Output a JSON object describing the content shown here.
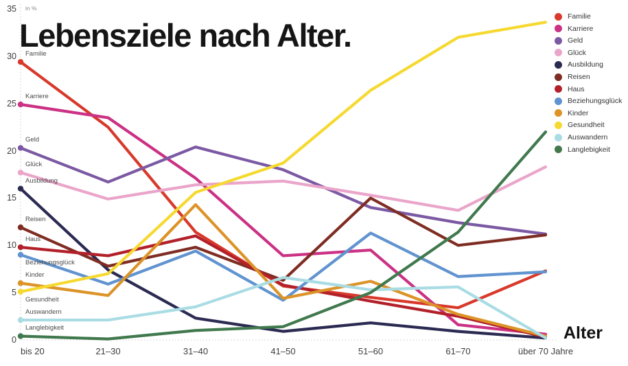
{
  "title": "Lebensziele nach Alter.",
  "y_axis": {
    "unit_label": "in %",
    "ticks": [
      "35",
      "30",
      "25",
      "20",
      "15",
      "10",
      "5",
      "0"
    ]
  },
  "x_axis": {
    "title": "Alter",
    "ticks": [
      "bis 20",
      "21–30",
      "31–40",
      "41–50",
      "51–60",
      "61–70",
      "über 70 Jahre"
    ]
  },
  "chart_data": {
    "type": "line",
    "title": "Lebensziele nach Alter.",
    "xlabel": "Alter",
    "ylabel": "in %",
    "ylim": [
      0,
      35
    ],
    "grid": false,
    "legend_position": "top-right",
    "categories": [
      "bis 20",
      "21–30",
      "31–40",
      "41–50",
      "51–60",
      "61–70",
      "über 70 Jahre"
    ],
    "series": [
      {
        "name": "Familie",
        "color": "#D8392B",
        "label_side": "above",
        "values": [
          29.4,
          22.5,
          11.4,
          5.7,
          4.5,
          3.4,
          7.3
        ]
      },
      {
        "name": "Karriere",
        "color": "#CB3184",
        "label_side": "above",
        "values": [
          24.9,
          23.5,
          17.1,
          8.9,
          9.5,
          1.6,
          0.6
        ]
      },
      {
        "name": "Geld",
        "color": "#7B59A3",
        "label_side": "above",
        "values": [
          20.3,
          16.7,
          20.4,
          18.0,
          14.0,
          12.4,
          11.2
        ]
      },
      {
        "name": "Glück",
        "color": "#EAA5CA",
        "label_side": "above",
        "values": [
          17.7,
          14.9,
          16.4,
          16.8,
          15.3,
          13.7,
          18.3
        ]
      },
      {
        "name": "Ausbildung",
        "color": "#2B2A52",
        "label_side": "above",
        "values": [
          16.0,
          7.4,
          2.3,
          0.9,
          1.8,
          0.9,
          0.2
        ]
      },
      {
        "name": "Reisen",
        "color": "#7F2D23",
        "label_side": "above",
        "values": [
          11.9,
          7.8,
          9.8,
          6.3,
          15.0,
          10.0,
          11.1
        ]
      },
      {
        "name": "Haus",
        "color": "#B22029",
        "label_side": "above",
        "values": [
          9.8,
          8.9,
          11.0,
          5.8,
          4.1,
          2.5,
          0.3
        ]
      },
      {
        "name": "Beziehungsglück",
        "color": "#6093CF",
        "label_side": "below",
        "values": [
          9.0,
          5.9,
          9.4,
          4.2,
          11.3,
          6.7,
          7.2
        ]
      },
      {
        "name": "Kinder",
        "color": "#DC9328",
        "label_side": "above",
        "values": [
          6.0,
          4.7,
          14.3,
          4.4,
          6.2,
          2.7,
          0.4
        ]
      },
      {
        "name": "Gesundheit",
        "color": "#F6D930",
        "label_side": "below",
        "values": [
          5.1,
          7.0,
          15.6,
          18.7,
          26.4,
          32.0,
          33.6
        ]
      },
      {
        "name": "Auswandern",
        "color": "#A9DCE3",
        "label_side": "above",
        "values": [
          2.1,
          2.1,
          3.5,
          6.6,
          5.3,
          5.6,
          0.2
        ]
      },
      {
        "name": "Langlebigkeit",
        "color": "#41794E",
        "label_side": "above",
        "values": [
          0.4,
          0.1,
          1.0,
          1.4,
          5.0,
          11.4,
          22.0
        ]
      }
    ]
  }
}
